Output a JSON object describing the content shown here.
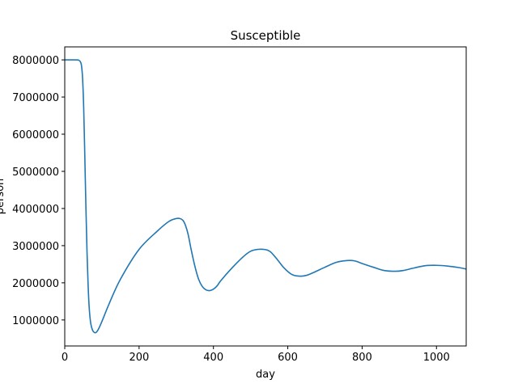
{
  "chart_data": {
    "type": "line",
    "title": "Susceptible",
    "xlabel": "day",
    "ylabel": "person",
    "xlim": [
      0,
      1080
    ],
    "ylim": [
      300000,
      8350000
    ],
    "xticks": [
      0,
      200,
      400,
      600,
      800,
      1000
    ],
    "yticks": [
      1000000,
      2000000,
      3000000,
      4000000,
      5000000,
      6000000,
      7000000,
      8000000
    ],
    "grid": false,
    "series": [
      {
        "color": "#1f77b4",
        "x": [
          0,
          30,
          38,
          42,
          45,
          48,
          51,
          54,
          57,
          60,
          63,
          66,
          70,
          75,
          80,
          85,
          90,
          100,
          120,
          150,
          200,
          250,
          280,
          300,
          310,
          318,
          325,
          332,
          340,
          350,
          360,
          370,
          380,
          390,
          400,
          410,
          420,
          450,
          480,
          500,
          520,
          535,
          545,
          555,
          570,
          590,
          610,
          630,
          650,
          670,
          700,
          730,
          760,
          780,
          800,
          830,
          860,
          890,
          910,
          940,
          970,
          1000,
          1030,
          1060,
          1080
        ],
        "values": [
          8000000,
          8000000,
          7990000,
          7950000,
          7850000,
          7500000,
          6700000,
          5400000,
          4000000,
          2800000,
          1900000,
          1300000,
          900000,
          720000,
          660000,
          670000,
          740000,
          960000,
          1450000,
          2100000,
          2900000,
          3400000,
          3650000,
          3730000,
          3730000,
          3680000,
          3540000,
          3300000,
          2900000,
          2450000,
          2100000,
          1900000,
          1810000,
          1790000,
          1830000,
          1920000,
          2060000,
          2400000,
          2700000,
          2850000,
          2900000,
          2900000,
          2880000,
          2820000,
          2650000,
          2400000,
          2230000,
          2180000,
          2200000,
          2280000,
          2420000,
          2550000,
          2600000,
          2590000,
          2520000,
          2420000,
          2330000,
          2310000,
          2330000,
          2400000,
          2460000,
          2470000,
          2450000,
          2410000,
          2370000
        ]
      }
    ]
  }
}
